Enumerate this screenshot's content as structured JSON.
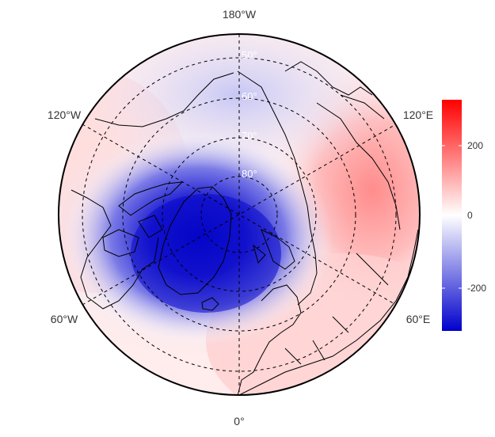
{
  "map": {
    "projection": "north-polar-stereographic",
    "longitude_labels": {
      "top": "180°W",
      "bottom": "0°",
      "upper_left": "120°W",
      "upper_right": "120°E",
      "lower_left": "60°W",
      "lower_right": "60°E"
    },
    "latitude_labels": [
      "50°",
      "60°",
      "70°",
      "80°"
    ],
    "graticule_style": "dashed",
    "field": {
      "description_colors": {
        "low": "#0000cc",
        "mid": "#ffffff",
        "high": "#ff0000"
      }
    }
  },
  "colorbar": {
    "ticks": [
      "200",
      "0",
      "-200"
    ],
    "range": [
      -330,
      330
    ],
    "colors": {
      "top": "#ff0000",
      "middle": "#ffffff",
      "bottom": "#0000cc"
    }
  }
}
